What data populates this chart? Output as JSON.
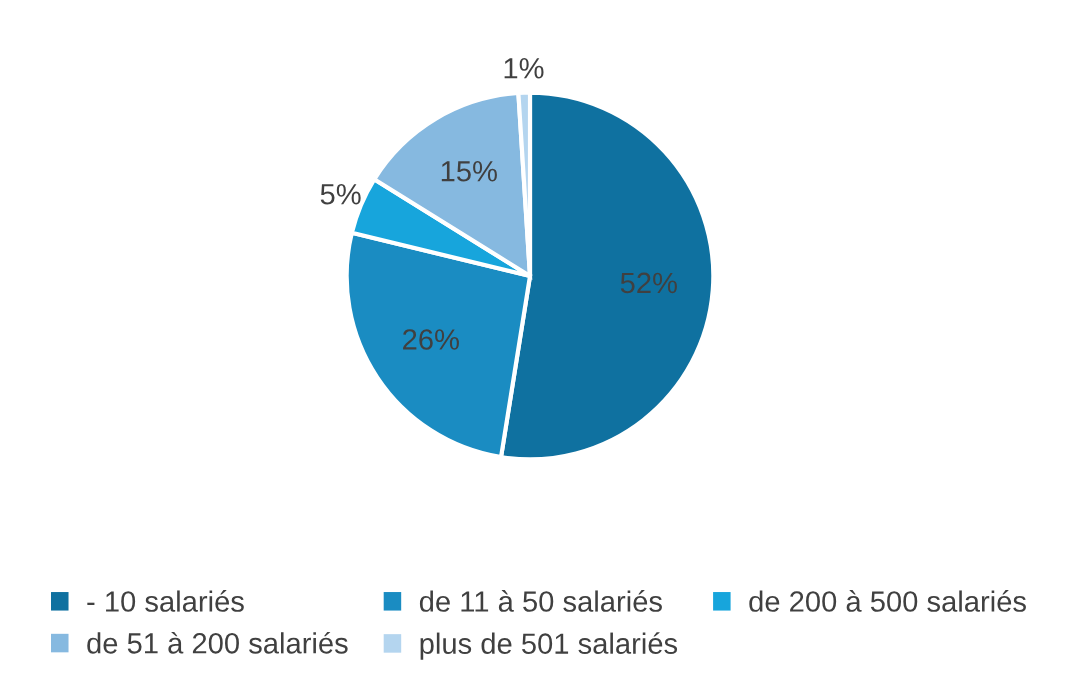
{
  "chart_data": {
    "type": "pie",
    "categories": [
      "- 10 salariés",
      "de 11 à 50 salariés",
      "de 200 à 500 salariés",
      "de 51 à 200 salariés",
      "plus de 501 salariés"
    ],
    "values": [
      52,
      26,
      5,
      15,
      1
    ],
    "value_labels": [
      "52%",
      "26%",
      "5%",
      "15%",
      "1%"
    ],
    "colors": [
      "#0f71a0",
      "#1a8cc2",
      "#17a5dc",
      "#86b9e0",
      "#b4d5ef"
    ],
    "legend": "bottom"
  }
}
